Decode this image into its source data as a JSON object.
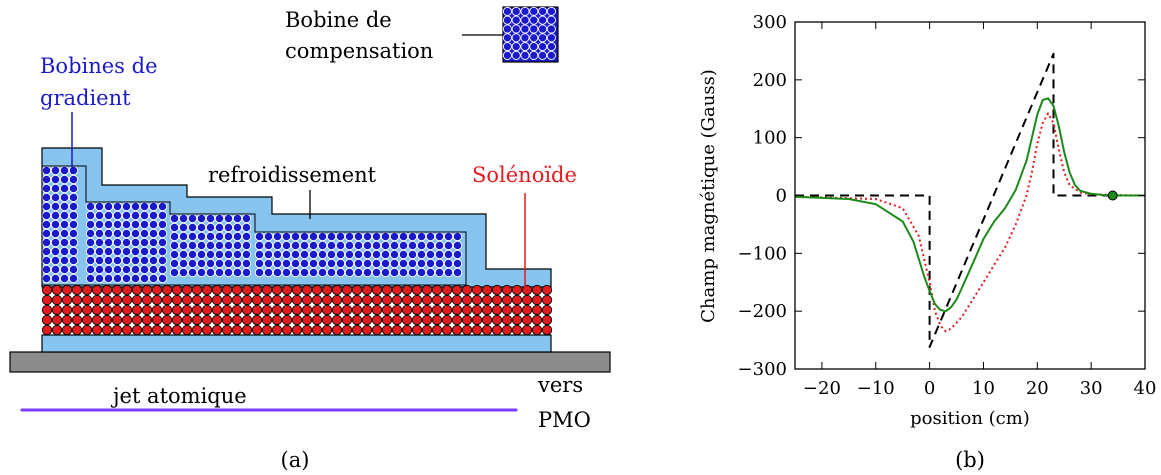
{
  "diagram": {
    "caption": "(a)",
    "compensation_coil_label": [
      "Bobine de",
      "compensation"
    ],
    "gradient_coils_label": [
      "Bobines de",
      "gradient"
    ],
    "cooling_label": "refroidissement",
    "solenoid_label": "Solénoïde",
    "beam_label": "jet atomique",
    "destination_label": [
      "vers",
      "PMO"
    ],
    "colors": {
      "gradient_coils": "#1a1acc",
      "solenoid": "#e41a1c",
      "cooling": "#87c5f0",
      "ground": "#8c8c8c",
      "beam": "#8a4dff",
      "gradient_text": "#1a1acc",
      "solenoid_text": "#e41a1c"
    }
  },
  "chart_data": {
    "type": "line",
    "caption": "(b)",
    "xlabel": "position (cm)",
    "ylabel": "Champ magnétique (Gauss)",
    "xlim": [
      -25,
      40
    ],
    "ylim": [
      -300,
      300
    ],
    "xticks": [
      -20,
      -10,
      0,
      10,
      20,
      30,
      40
    ],
    "yticks": [
      -300,
      -200,
      -100,
      0,
      100,
      200,
      300
    ],
    "xtick_labels": [
      "−20",
      "−10",
      "0",
      "10",
      "20",
      "30",
      "40"
    ],
    "ytick_labels": [
      "−300",
      "−200",
      "−100",
      "0",
      "100",
      "200",
      "300"
    ],
    "grid": false,
    "series": [
      {
        "style": "dashed",
        "color": "#000000",
        "x": [
          -25,
          0,
          0,
          23,
          23,
          40
        ],
        "y": [
          0,
          0,
          -262,
          245,
          0,
          0
        ]
      },
      {
        "style": "dotted",
        "color": "#e41a1c",
        "x": [
          -25,
          -10,
          -5,
          -2,
          0,
          1,
          2,
          3,
          4,
          6,
          8,
          10,
          12,
          14,
          16,
          18,
          19,
          20,
          21,
          22,
          23,
          24,
          25,
          26,
          28,
          30,
          34,
          40
        ],
        "y": [
          -2,
          -6,
          -22,
          -70,
          -150,
          -200,
          -225,
          -235,
          -230,
          -210,
          -180,
          -150,
          -120,
          -90,
          -50,
          0,
          40,
          90,
          125,
          142,
          125,
          80,
          40,
          18,
          5,
          2,
          1,
          0
        ]
      },
      {
        "style": "solid",
        "color": "#1a8a1a",
        "x": [
          -25,
          -15,
          -10,
          -5,
          -3,
          -1,
          0,
          1,
          2,
          3,
          4,
          5,
          6,
          8,
          10,
          12,
          14,
          16,
          18,
          19,
          20,
          21,
          22,
          23,
          24,
          25,
          26,
          27,
          28,
          30,
          32,
          34,
          40
        ],
        "y": [
          -2,
          -6,
          -15,
          -45,
          -80,
          -140,
          -165,
          -188,
          -198,
          -200,
          -193,
          -180,
          -160,
          -118,
          -75,
          -45,
          -22,
          10,
          60,
          100,
          140,
          165,
          168,
          155,
          120,
          75,
          40,
          18,
          8,
          3,
          1,
          0,
          0
        ]
      }
    ],
    "markers": [
      {
        "x": 34,
        "y": 0,
        "color": "#1a8a1a"
      }
    ]
  }
}
